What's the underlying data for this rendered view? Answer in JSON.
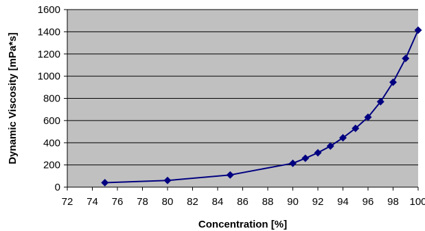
{
  "chart_data": {
    "type": "line",
    "title": "",
    "xlabel": "Concentration [%]",
    "ylabel": "Dynamic Viscosity [mPa*s]",
    "xlim": [
      72,
      100
    ],
    "ylim": [
      0,
      1600
    ],
    "xticks": [
      72,
      74,
      76,
      78,
      80,
      82,
      84,
      86,
      88,
      90,
      92,
      94,
      96,
      98,
      100
    ],
    "yticks": [
      0,
      200,
      400,
      600,
      800,
      1000,
      1200,
      1400,
      1600
    ],
    "grid": true,
    "legend": "none",
    "series": [
      {
        "marker": "diamond",
        "color": "#000080",
        "x": [
          75,
          80,
          85,
          90,
          91,
          92,
          93,
          94,
          95,
          96,
          97,
          98,
          99,
          100
        ],
        "y": [
          40,
          60,
          110,
          215,
          260,
          310,
          370,
          445,
          530,
          630,
          770,
          945,
          1160,
          1415
        ]
      }
    ]
  },
  "colors": {
    "plot_background": "#c0c0c0",
    "gridline": "#000000",
    "series": "#000080"
  }
}
